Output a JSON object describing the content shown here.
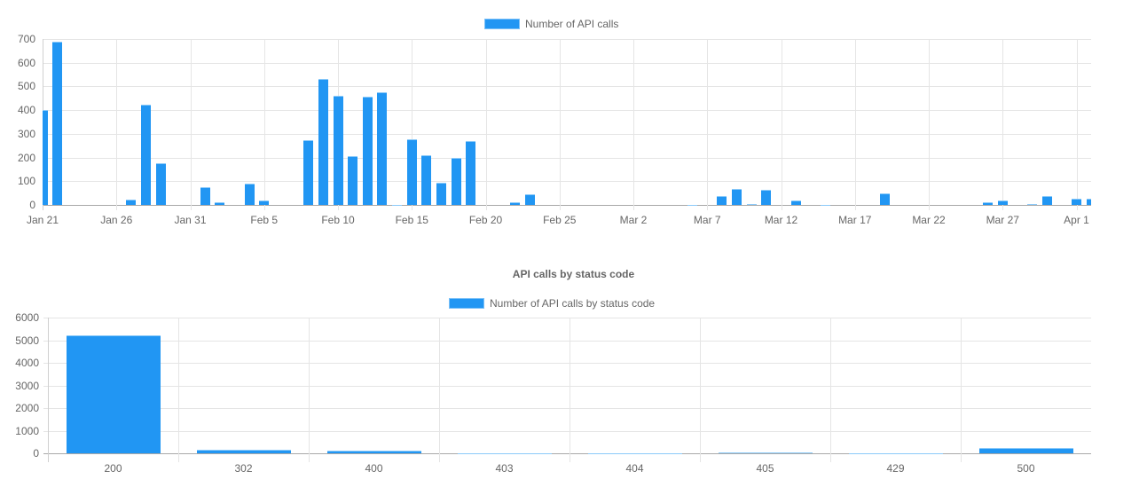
{
  "chart_data": [
    {
      "type": "bar",
      "title": "",
      "legend": [
        "Number of API calls"
      ],
      "legend_position": "top",
      "xlabel": "",
      "ylabel": "",
      "ylim": [
        0,
        700
      ],
      "yticks": [
        0,
        100,
        200,
        300,
        400,
        500,
        600,
        700
      ],
      "xticks": [
        "Jan 21",
        "Jan 26",
        "Jan 31",
        "Feb 5",
        "Feb 10",
        "Feb 15",
        "Feb 20",
        "Feb 25",
        "Mar 2",
        "Mar 7",
        "Mar 12",
        "Mar 17",
        "Mar 22",
        "Mar 27",
        "Apr 1"
      ],
      "grid": true,
      "color": "#2196F3",
      "series": [
        {
          "name": "Number of API calls",
          "points": [
            {
              "date": "Jan 21",
              "value": 400
            },
            {
              "date": "Jan 22",
              "value": 690
            },
            {
              "date": "Jan 27",
              "value": 22
            },
            {
              "date": "Jan 28",
              "value": 422
            },
            {
              "date": "Jan 29",
              "value": 175
            },
            {
              "date": "Feb 1",
              "value": 75
            },
            {
              "date": "Feb 2",
              "value": 10
            },
            {
              "date": "Feb 4",
              "value": 90
            },
            {
              "date": "Feb 5",
              "value": 20
            },
            {
              "date": "Feb 8",
              "value": 273
            },
            {
              "date": "Feb 9",
              "value": 533
            },
            {
              "date": "Feb 10",
              "value": 460
            },
            {
              "date": "Feb 11",
              "value": 205
            },
            {
              "date": "Feb 12",
              "value": 458
            },
            {
              "date": "Feb 13",
              "value": 474
            },
            {
              "date": "Feb 14",
              "value": 1
            },
            {
              "date": "Feb 15",
              "value": 276
            },
            {
              "date": "Feb 16",
              "value": 210
            },
            {
              "date": "Feb 17",
              "value": 92
            },
            {
              "date": "Feb 18",
              "value": 197
            },
            {
              "date": "Feb 19",
              "value": 270
            },
            {
              "date": "Feb 22",
              "value": 12
            },
            {
              "date": "Feb 23",
              "value": 46
            },
            {
              "date": "Mar 6",
              "value": 1
            },
            {
              "date": "Mar 8",
              "value": 38
            },
            {
              "date": "Mar 9",
              "value": 68
            },
            {
              "date": "Mar 10",
              "value": 4
            },
            {
              "date": "Mar 11",
              "value": 62
            },
            {
              "date": "Mar 13",
              "value": 20
            },
            {
              "date": "Mar 15",
              "value": 1
            },
            {
              "date": "Mar 19",
              "value": 48
            },
            {
              "date": "Mar 26",
              "value": 12
            },
            {
              "date": "Mar 27",
              "value": 18
            },
            {
              "date": "Mar 29",
              "value": 2
            },
            {
              "date": "Mar 30",
              "value": 38
            },
            {
              "date": "Apr 1",
              "value": 27
            },
            {
              "date": "Apr 2",
              "value": 27
            }
          ]
        }
      ]
    },
    {
      "type": "bar",
      "title": "API calls by status code",
      "legend": [
        "Number of API calls by status code"
      ],
      "legend_position": "top",
      "xlabel": "",
      "ylabel": "",
      "ylim": [
        0,
        6000
      ],
      "yticks": [
        0,
        1000,
        2000,
        3000,
        4000,
        5000,
        6000
      ],
      "grid": true,
      "color": "#2196F3",
      "categories": [
        "200",
        "302",
        "400",
        "403",
        "404",
        "405",
        "429",
        "500"
      ],
      "series": [
        {
          "name": "Number of API calls by status code",
          "values": [
            5215,
            175,
            135,
            15,
            3,
            20,
            5,
            235
          ]
        }
      ]
    }
  ],
  "chart1": {
    "legend_label": "Number of API calls",
    "y_labels": [
      "700",
      "600",
      "500",
      "400",
      "300",
      "200",
      "100",
      "0"
    ],
    "x_labels": [
      "Jan 21",
      "Jan 26",
      "Jan 31",
      "Feb 5",
      "Feb 10",
      "Feb 15",
      "Feb 20",
      "Feb 25",
      "Mar 2",
      "Mar 7",
      "Mar 12",
      "Mar 17",
      "Mar 22",
      "Mar 27",
      "Apr 1"
    ]
  },
  "chart2": {
    "title": "API calls by status code",
    "legend_label": "Number of API calls by status code",
    "y_labels": [
      "6000",
      "5000",
      "4000",
      "3000",
      "2000",
      "1000",
      "0"
    ],
    "x_labels": [
      "200",
      "302",
      "400",
      "403",
      "404",
      "405",
      "429",
      "500"
    ]
  }
}
